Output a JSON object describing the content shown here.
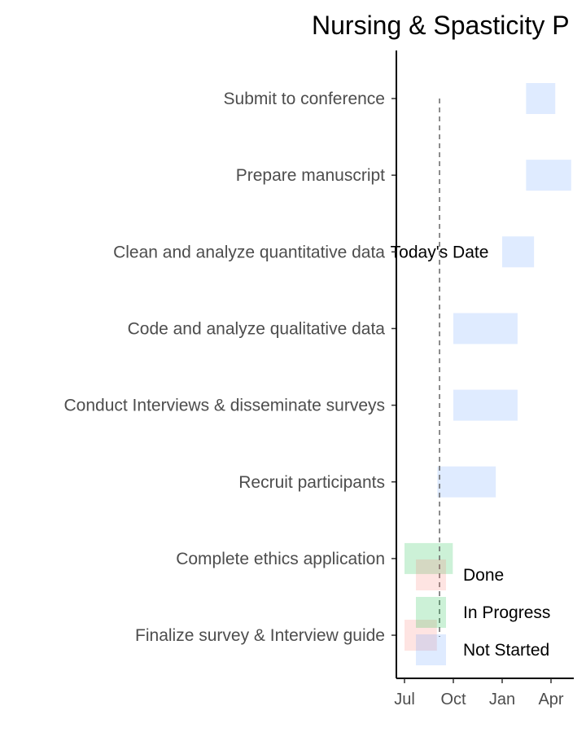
{
  "chart_data": {
    "type": "gantt",
    "title": "Nursing & Spasticity P",
    "x_axis_ticks": [
      "Jul",
      "Oct",
      "Jan",
      "Apr"
    ],
    "tasks": [
      {
        "name": "Submit to conference",
        "start": "2020-02-15",
        "end": "2020-04-10",
        "status": "Not Started"
      },
      {
        "name": "Prepare manuscript",
        "start": "2020-02-15",
        "end": "2020-05-10",
        "status": "Not Started"
      },
      {
        "name": "Clean and analyze quantitative data",
        "start": "2020-01-01",
        "end": "2020-03-01",
        "status": "Not Started"
      },
      {
        "name": "Code and analyze qualitative data",
        "start": "2019-10-01",
        "end": "2020-01-30",
        "status": "Not Started"
      },
      {
        "name": "Conduct Interviews & disseminate surveys",
        "start": "2019-10-01",
        "end": "2020-01-30",
        "status": "Not Started"
      },
      {
        "name": "Recruit participants",
        "start": "2019-09-01",
        "end": "2019-12-20",
        "status": "Not Started"
      },
      {
        "name": "Complete ethics application",
        "start": "2019-07-01",
        "end": "2019-09-30",
        "status": "In Progress"
      },
      {
        "name": "Finalize survey & Interview guide",
        "start": "2019-07-01",
        "end": "2019-08-31",
        "status": "Done"
      }
    ],
    "today_label": "Today's Date",
    "today_date": "2019-09-05",
    "legend": [
      "Done",
      "In Progress",
      "Not Started"
    ],
    "legend_position": "bottom-right",
    "colors": {
      "Done": "#f8766d",
      "In Progress": "#00ba38",
      "Not Started": "#619cff"
    },
    "grid": false
  }
}
